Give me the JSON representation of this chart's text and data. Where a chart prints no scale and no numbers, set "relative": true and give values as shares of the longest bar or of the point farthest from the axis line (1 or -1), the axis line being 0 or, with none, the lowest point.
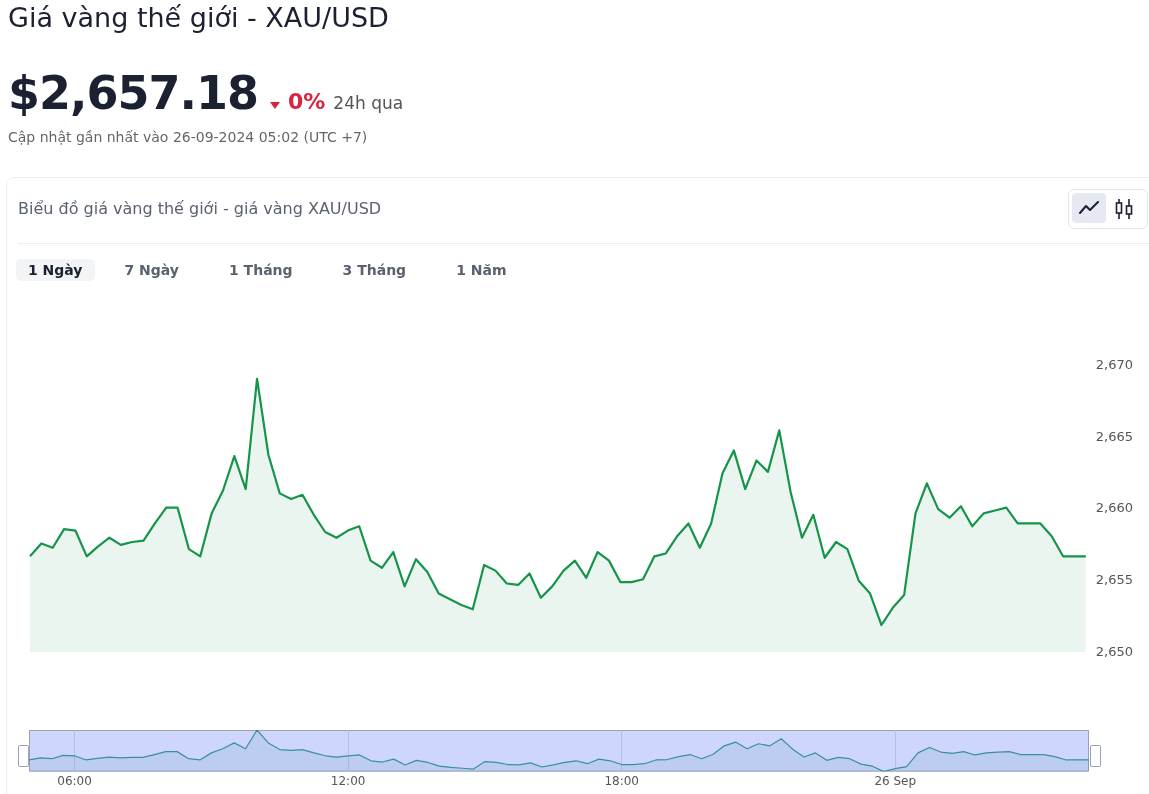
{
  "chart_data": [
    {
      "type": "area",
      "title": "Giá vàng thế giới - XAU/USD",
      "subtitle": "Biểu đồ giá vàng thế giới - giá vàng XAU/USD",
      "annotations": [
        "$2,657.18",
        "0%",
        "24h qua",
        "Cập nhật gần nhất vào 26-09-2024 05:02 (UTC +7)",
        "1 Ngày",
        "7 Ngày",
        "1 Tháng",
        "3 Tháng",
        "1 Năm"
      ],
      "categories": [
        null,
        null,
        null,
        null,
        null,
        null,
        null,
        null,
        null,
        null,
        null,
        null,
        null,
        null,
        null,
        null,
        null,
        null,
        null,
        null,
        null,
        null,
        null,
        null,
        null,
        null,
        null,
        null,
        null,
        null,
        null,
        null,
        null,
        null,
        null,
        null,
        null,
        null,
        null,
        null,
        null,
        null,
        null,
        null,
        null,
        null,
        null,
        null,
        null,
        null,
        null,
        null,
        null,
        null,
        null,
        null,
        null,
        null,
        null,
        null,
        null,
        null,
        null,
        null,
        null,
        null,
        null,
        null,
        null,
        null,
        null,
        null,
        null,
        null,
        null,
        null,
        null,
        null,
        null,
        null,
        null,
        null,
        null,
        null,
        null,
        null,
        null,
        null,
        null,
        null,
        null,
        null,
        null,
        null
      ],
      "series": [
        {
          "color": "#16954a",
          "values": [
            2656.7,
            2657.6,
            2657.3,
            2658.6,
            2658.5,
            2656.7,
            2657.4,
            2658.0,
            2657.5,
            2657.7,
            2657.8,
            2659.0,
            2660.1,
            2660.1,
            2657.2,
            2656.7,
            2659.7,
            2661.3,
            2663.7,
            2661.4,
            2669.1,
            2663.8,
            2661.1,
            2660.7,
            2661.0,
            2659.6,
            2658.4,
            2658.0,
            2658.5,
            2658.8,
            2656.4,
            2655.9,
            2657.0,
            2654.6,
            2656.5,
            2655.6,
            2654.1,
            2653.7,
            2653.3,
            2653.0,
            2656.1,
            2655.7,
            2654.8,
            2654.7,
            2655.5,
            2653.8,
            2654.6,
            2655.7,
            2656.4,
            2655.2,
            2657.0,
            2656.4,
            2654.9,
            2654.9,
            2655.1,
            2656.7,
            2656.9,
            2658.1,
            2659.0,
            2657.3,
            2659.0,
            2662.5,
            2664.1,
            2661.4,
            2663.4,
            2662.6,
            2665.5,
            2661.2,
            2658.0,
            2659.6,
            2656.6,
            2657.7,
            2657.2,
            2655.0,
            2654.1,
            2651.9,
            2653.1,
            2654.0,
            2659.7,
            2661.8,
            2660.0,
            2659.4,
            2660.2,
            2658.8,
            2659.7,
            2659.9,
            2660.1,
            2659.0,
            2659.0,
            2659.0,
            2658.1,
            2656.7,
            2656.7,
            2656.7
          ]
        }
      ],
      "ylim": [
        2650,
        2670
      ],
      "yticks": [
        {
          "value": 2650,
          "label": "2,650"
        },
        {
          "value": 2655,
          "label": "2,655"
        },
        {
          "value": 2660,
          "label": "2,660"
        },
        {
          "value": 2665,
          "label": "2,665"
        },
        {
          "value": 2670,
          "label": "2,670"
        }
      ],
      "tick_labels": "y",
      "marker": "none"
    },
    {
      "type": "area",
      "relative": true,
      "x": [
        5,
        5.25,
        5.5,
        5.75,
        6,
        6.25,
        6.5,
        6.75,
        7,
        7.25,
        7.5,
        7.75,
        8,
        8.25,
        8.5,
        8.75,
        9,
        9.25,
        9.5,
        9.75,
        10,
        10.25,
        10.5,
        10.75,
        11,
        11.25,
        11.5,
        11.75,
        12,
        12.25,
        12.5,
        12.75,
        13,
        13.25,
        13.5,
        13.75,
        14,
        14.25,
        14.5,
        14.75,
        15,
        15.25,
        15.5,
        15.75,
        16,
        16.25,
        16.5,
        16.75,
        17,
        17.25,
        17.5,
        17.75,
        18,
        18.25,
        18.5,
        18.75,
        19,
        19.25,
        19.5,
        19.75,
        20,
        20.25,
        20.5,
        20.75,
        21,
        21.25,
        21.5,
        21.75,
        22,
        22.25,
        22.5,
        22.75,
        23,
        23.25,
        23.5,
        23.75,
        24,
        24.25,
        24.5,
        24.75,
        25,
        25.25,
        25.5,
        25.75,
        26,
        26.25,
        26.5,
        26.75,
        27,
        27.25,
        27.5,
        27.75,
        28,
        28.25
      ],
      "series": [
        {
          "color": "#3a8fa0",
          "values": [
            0.28,
            0.33,
            0.31,
            0.39,
            0.38,
            0.28,
            0.32,
            0.35,
            0.33,
            0.34,
            0.34,
            0.41,
            0.48,
            0.48,
            0.31,
            0.28,
            0.45,
            0.55,
            0.69,
            0.55,
            1,
            0.69,
            0.53,
            0.51,
            0.53,
            0.45,
            0.38,
            0.35,
            0.38,
            0.4,
            0.26,
            0.23,
            0.3,
            0.16,
            0.27,
            0.22,
            0.13,
            0.1,
            0.08,
            0.06,
            0.24,
            0.22,
            0.17,
            0.16,
            0.21,
            0.11,
            0.16,
            0.22,
            0.26,
            0.19,
            0.3,
            0.26,
            0.17,
            0.17,
            0.19,
            0.28,
            0.29,
            0.36,
            0.41,
            0.31,
            0.41,
            0.62,
            0.71,
            0.55,
            0.67,
            0.62,
            0.79,
            0.54,
            0.35,
            0.45,
            0.27,
            0.34,
            0.31,
            0.18,
            0.13,
            0,
            0.07,
            0.12,
            0.45,
            0.58,
            0.47,
            0.44,
            0.48,
            0.4,
            0.45,
            0.47,
            0.48,
            0.41,
            0.41,
            0.41,
            0.36,
            0.28,
            0.28,
            0.28
          ]
        }
      ],
      "xlim": [
        5,
        28.25
      ],
      "xticks": [
        {
          "value": 6,
          "label": "06:00"
        },
        {
          "value": 12,
          "label": "12:00"
        },
        {
          "value": 18,
          "label": "18:00"
        },
        {
          "value": 24,
          "label": "26 Sep"
        }
      ],
      "tick_labels": "x",
      "grid": "x",
      "marker": "none"
    }
  ]
}
